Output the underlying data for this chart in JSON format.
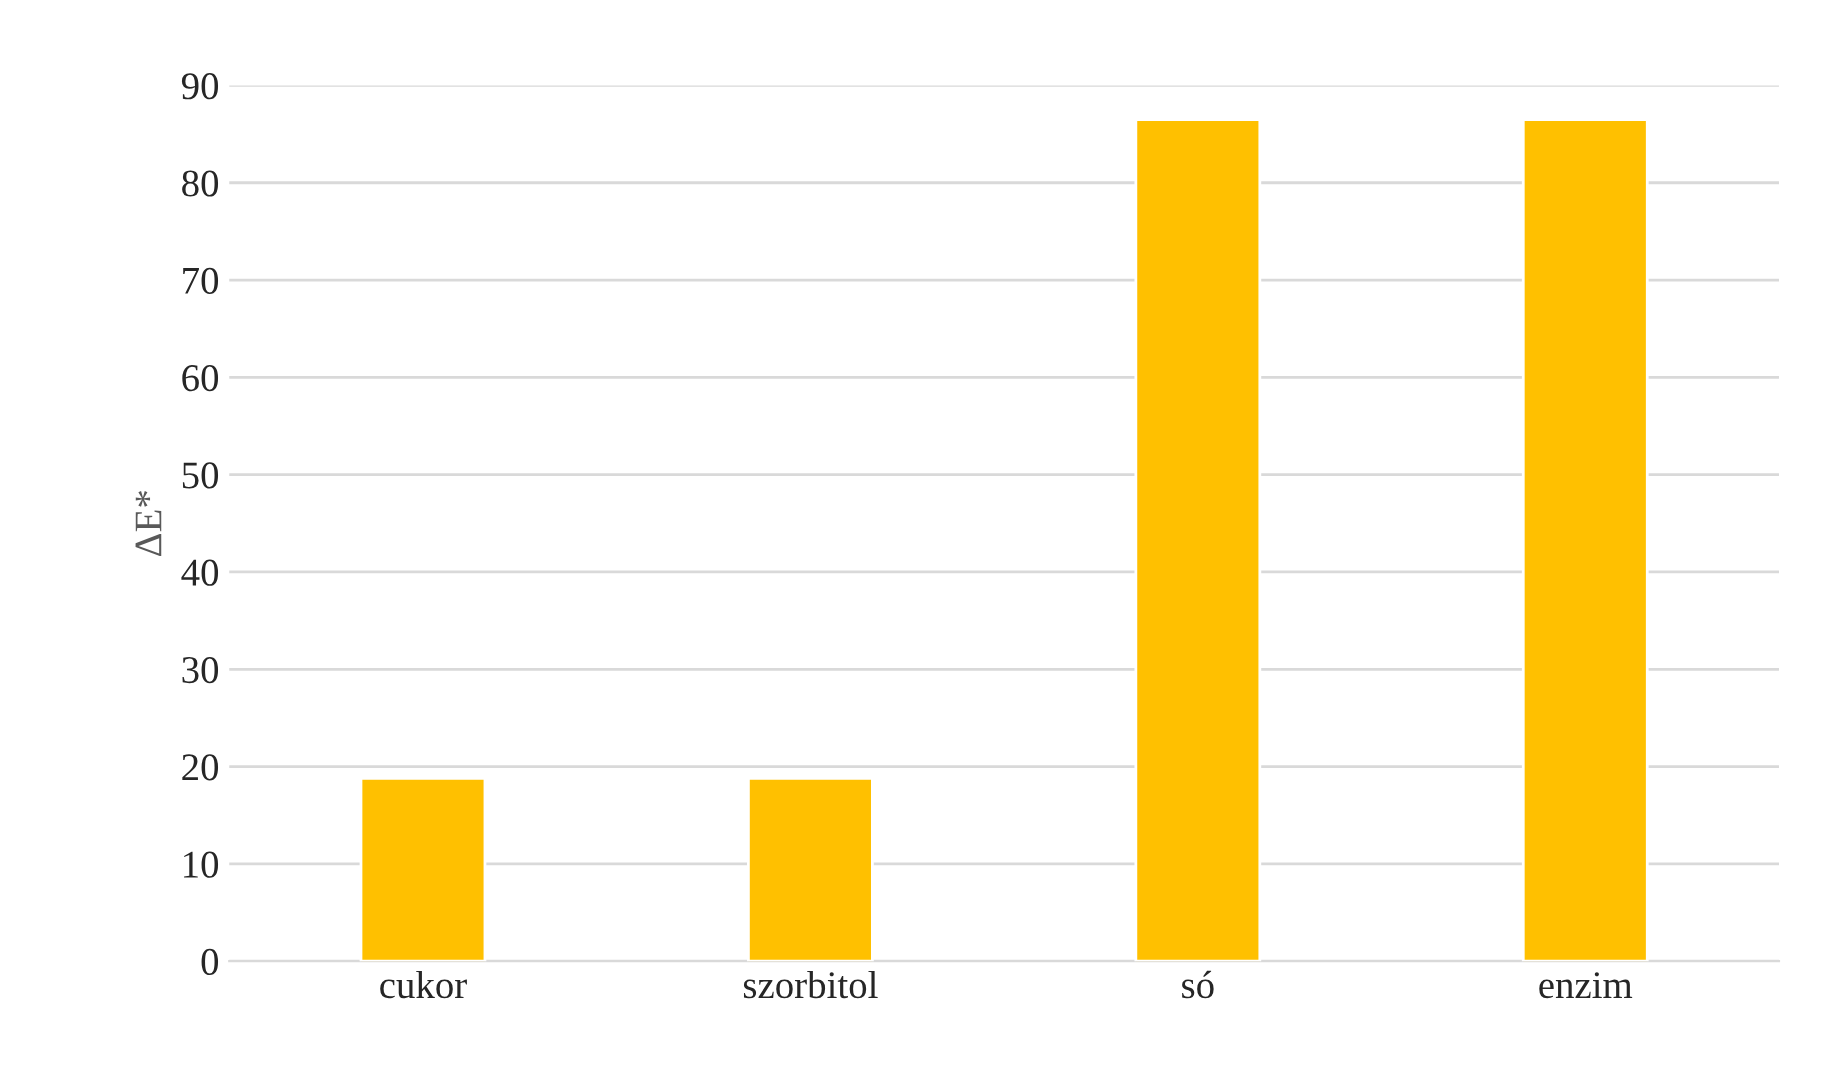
{
  "chart_data": {
    "type": "bar",
    "ylabel": "ΔE*",
    "categories": [
      "cukor",
      "szorbitol",
      "só",
      "enzim"
    ],
    "series": [
      {
        "color": "#ffc000",
        "values": [
          18.8,
          18.8,
          86.5,
          86.5
        ]
      }
    ],
    "ylim": [
      0,
      90
    ],
    "yticks": [
      0,
      10,
      20,
      30,
      40,
      50,
      60,
      70,
      80,
      90
    ],
    "grid": "y",
    "legend": false
  }
}
